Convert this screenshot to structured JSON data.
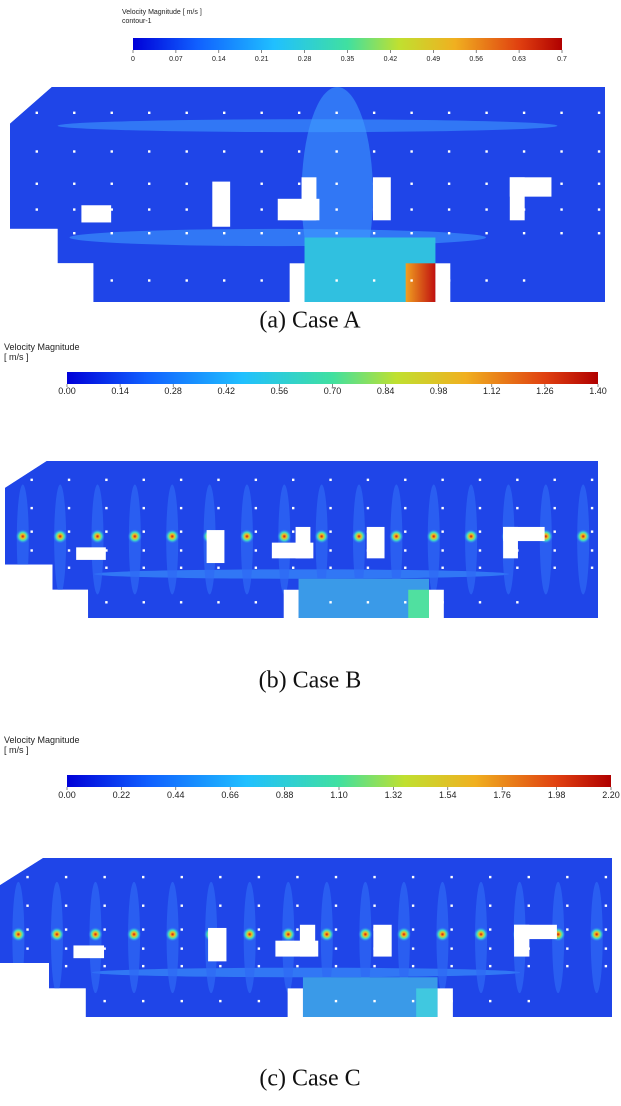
{
  "panels": [
    {
      "legend_title": "Velocity Magnitude [ m/s ]",
      "legend_subtitle": "contour-1",
      "ticks": [
        "0",
        "0.07",
        "0.14",
        "0.21",
        "0.28",
        "0.35",
        "0.42",
        "0.49",
        "0.56",
        "0.63",
        "0.7"
      ],
      "caption": "(a)  Case A"
    },
    {
      "legend_title": "Velocity Magnitude",
      "legend_subtitle": "[ m/s ]",
      "ticks": [
        "0.00",
        "0.14",
        "0.28",
        "0.42",
        "0.56",
        "0.70",
        "0.84",
        "0.98",
        "1.12",
        "1.26",
        "1.40"
      ],
      "caption": "(b)  Case B"
    },
    {
      "legend_title": "Velocity Magnitude",
      "legend_subtitle": "[ m/s ]",
      "ticks": [
        "0.00",
        "0.22",
        "0.44",
        "0.66",
        "0.88",
        "1.10",
        "1.32",
        "1.54",
        "1.76",
        "1.98",
        "2.20"
      ],
      "caption": "(c)  Case C"
    }
  ]
}
